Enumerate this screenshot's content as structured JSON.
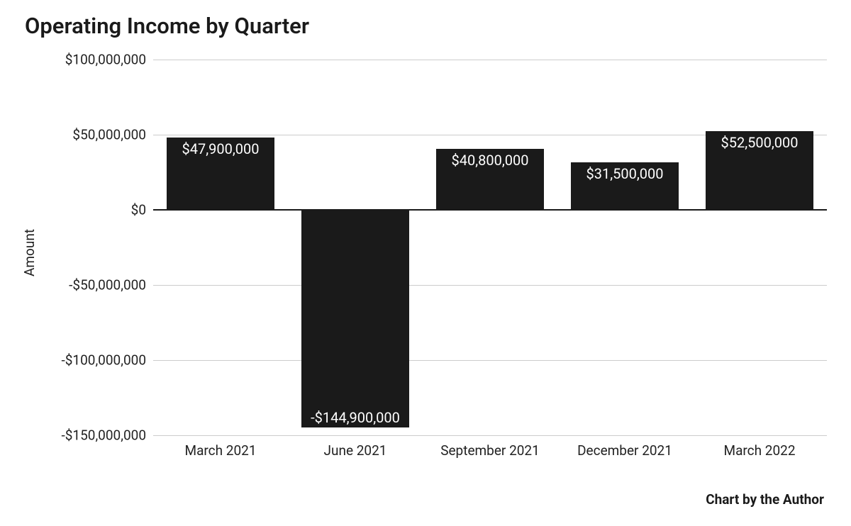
{
  "chart": {
    "type": "bar",
    "title": "Operating Income by Quarter",
    "title_fontsize": 31,
    "title_color": "#1a1a1a",
    "ylabel": "Amount",
    "label_fontsize": 19,
    "background_color": "#ffffff",
    "grid_color": "#cccccc",
    "zero_line_color": "#1a1a1a",
    "bar_color": "#1a1a1a",
    "bar_width_ratio": 0.8,
    "data_label_color": "#ffffff",
    "data_label_fontsize": 20,
    "ylim": [
      -150000000,
      100000000
    ],
    "ytick_step": 50000000,
    "yticks": [
      {
        "value": 100000000,
        "label": "$100,000,000"
      },
      {
        "value": 50000000,
        "label": "$50,000,000"
      },
      {
        "value": 0,
        "label": "$0"
      },
      {
        "value": -50000000,
        "label": "-$50,000,000"
      },
      {
        "value": -100000000,
        "label": "-$100,000,000"
      },
      {
        "value": -150000000,
        "label": "-$150,000,000"
      }
    ],
    "categories": [
      "March 2021",
      "June 2021",
      "September 2021",
      "December 2021",
      "March 2022"
    ],
    "values": [
      47900000,
      -144900000,
      40800000,
      31500000,
      52500000
    ],
    "value_labels": [
      "$47,900,000",
      "-$144,900,000",
      "$40,800,000",
      "$31,500,000",
      "$52,500,000"
    ],
    "credit": "Chart by the Author"
  }
}
